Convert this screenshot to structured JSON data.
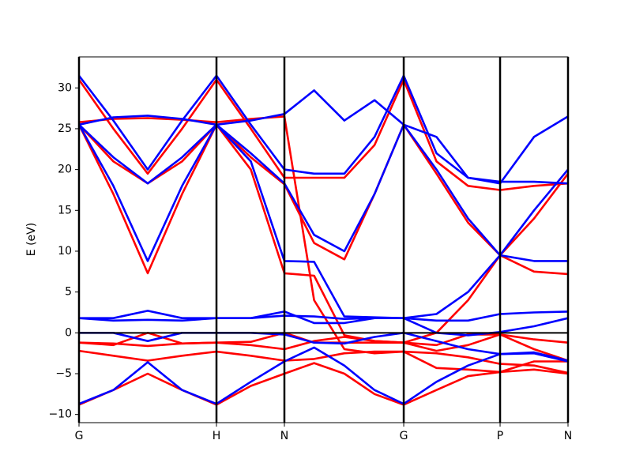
{
  "chart_data": {
    "type": "line",
    "ylabel": "E (eV)",
    "x": [
      0,
      0.25,
      0.5,
      0.75,
      1.0,
      1.25,
      1.494,
      1.71,
      1.93,
      2.15,
      2.362,
      2.6,
      2.83,
      3.063,
      3.31,
      3.557
    ],
    "xlim": [
      0,
      3.557
    ],
    "xticks": [
      {
        "value": 0,
        "label": "G"
      },
      {
        "value": 1.0,
        "label": "H"
      },
      {
        "value": 1.494,
        "label": "N"
      },
      {
        "value": 2.362,
        "label": "G"
      },
      {
        "value": 3.063,
        "label": "P"
      },
      {
        "value": 3.557,
        "label": "N"
      }
    ],
    "ylim": [
      -11,
      33.8
    ],
    "yticks": [
      {
        "value": -10,
        "label": "−10"
      },
      {
        "value": -5,
        "label": "−5"
      },
      0,
      5,
      10,
      15,
      20,
      25,
      30
    ],
    "hlines": [
      0
    ],
    "series": [
      {
        "color": "#ff0000",
        "values": [
          -8.8,
          -7,
          -5,
          -7,
          -8.8,
          -6.5,
          -5,
          -3.7,
          -5,
          -7.5,
          -8.8,
          -7,
          -5.3,
          -4.8,
          -4.5,
          -5
        ]
      },
      {
        "color": "#ff0000",
        "values": [
          -2.2,
          -2.8,
          -3.4,
          -2.8,
          -2.3,
          -2.8,
          -3.4,
          -3.2,
          -2.5,
          -2.3,
          -2.3,
          -4.3,
          -4.5,
          -4.8,
          -3.5,
          -3.5
        ]
      },
      {
        "color": "#ff0000",
        "values": [
          -1.2,
          -1.5,
          0,
          -1.3,
          -1.2,
          -1.1,
          0,
          -1.2,
          -1.2,
          -1.2,
          -1.2,
          -2.2,
          -1.5,
          -0.2,
          -0.8,
          -1.2
        ]
      },
      {
        "color": "#ff0000",
        "values": [
          -1.2,
          -1.3,
          -1.6,
          -1.3,
          -1.2,
          -1.5,
          -2,
          -1,
          -0.5,
          -1,
          -1.2,
          -1.5,
          -0.2,
          -0.2,
          -2,
          -3.4
        ]
      },
      {
        "color": "#ff0000",
        "values": [
          25.5,
          17,
          7.3,
          17,
          25.5,
          20,
          7.3,
          7,
          -0.3,
          -1,
          -1.2,
          0,
          4,
          9.5,
          7.5,
          7.2
        ]
      },
      {
        "color": "#ff0000",
        "values": [
          25.5,
          21,
          18.3,
          21,
          25.5,
          21.5,
          18.2,
          11,
          9,
          17,
          25.5,
          19.5,
          13.5,
          9.5,
          14,
          19.5
        ]
      },
      {
        "color": "#ff0000",
        "values": [
          31,
          25,
          19.5,
          25,
          31,
          25,
          19,
          19,
          19,
          23,
          31,
          21,
          18,
          17.5,
          18,
          18.3
        ]
      },
      {
        "color": "#ff0000",
        "values": [
          25.8,
          26.2,
          26.3,
          26.1,
          25.8,
          26.2,
          26.5,
          4,
          -2,
          -2.5,
          -2.3,
          -2.5,
          -3,
          -3.8,
          -4,
          -4.9
        ]
      },
      {
        "color": "#0000ff",
        "values": [
          -8.7,
          -7,
          -3.6,
          -7,
          -8.7,
          -6,
          -3.5,
          -1.8,
          -4,
          -7,
          -8.7,
          -6,
          -4,
          -2.6,
          -2.5,
          -3.5
        ]
      },
      {
        "color": "#0000ff",
        "values": [
          0,
          0,
          -1,
          0,
          0,
          0,
          -0.2,
          -1.2,
          -1.3,
          -0.5,
          0,
          -1,
          -2,
          -2.6,
          -2.4,
          -3.4
        ]
      },
      {
        "color": "#0000ff",
        "values": [
          1.8,
          1.8,
          2.7,
          1.8,
          1.8,
          1.8,
          2.6,
          1.2,
          1.2,
          1.8,
          1.8,
          1.5,
          1.5,
          2.3,
          2.5,
          2.6
        ]
      },
      {
        "color": "#0000ff",
        "values": [
          1.8,
          1.5,
          1.6,
          1.5,
          1.8,
          1.8,
          2.1,
          2,
          1.7,
          1.8,
          1.8,
          0,
          -0.3,
          0.1,
          0.8,
          1.8
        ]
      },
      {
        "color": "#0000ff",
        "values": [
          25.5,
          18,
          8.8,
          18,
          25.5,
          21,
          8.8,
          8.7,
          2,
          1.9,
          1.8,
          2.3,
          5,
          9.5,
          8.8,
          8.8
        ]
      },
      {
        "color": "#0000ff",
        "values": [
          25.5,
          21.5,
          18.3,
          21.5,
          25.5,
          22,
          18.3,
          12,
          10,
          17,
          25.5,
          20,
          14,
          9.5,
          15,
          20
        ]
      },
      {
        "color": "#0000ff",
        "values": [
          31.5,
          26,
          20,
          26,
          31.5,
          25.5,
          20,
          19.5,
          19.5,
          24,
          31.5,
          22,
          19,
          18.5,
          18.5,
          18.3
        ]
      },
      {
        "color": "#0000ff",
        "values": [
          25.5,
          26.4,
          26.6,
          26.2,
          25.5,
          26,
          26.8,
          29.7,
          26,
          28.5,
          25.5,
          24,
          19,
          18.3,
          24,
          26.5
        ]
      }
    ]
  }
}
